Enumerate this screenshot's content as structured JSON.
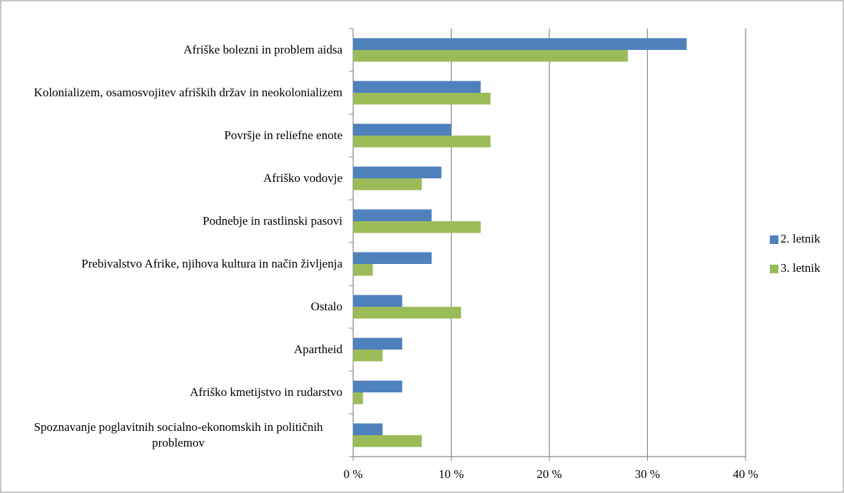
{
  "chart_data": {
    "type": "bar",
    "orientation": "horizontal",
    "categories": [
      "Afriške bolezni in problem aidsa",
      "Kolonializem, osamosvojitev afriških držav in neokolonializem",
      "Površje in reliefne enote",
      "Afriško vodovje",
      "Podnebje in rastlinski pasovi",
      "Prebivalstvo Afrike, njihova kultura in način življenja",
      "Ostalo",
      "Apartheid",
      "Afriško kmetijstvo in rudarstvo",
      "Spoznavanje poglavitnih socialno-ekonomskih in političnih problemov"
    ],
    "series": [
      {
        "name": "2. letnik",
        "color": "#4f81bd",
        "values": [
          34,
          13,
          10,
          9,
          8,
          8,
          5,
          5,
          5,
          3
        ]
      },
      {
        "name": "3. letnik",
        "color": "#9bbb59",
        "values": [
          28,
          14,
          14,
          7,
          13,
          2,
          11,
          3,
          1,
          7
        ]
      }
    ],
    "xlim": [
      0,
      40
    ],
    "xticks": [
      {
        "value": 0,
        "label": "0 %"
      },
      {
        "value": 10,
        "label": "10 %"
      },
      {
        "value": 20,
        "label": "20 %"
      },
      {
        "value": 30,
        "label": "30 %"
      },
      {
        "value": 40,
        "label": "40 %"
      }
    ],
    "grid": true,
    "legend": "right"
  }
}
